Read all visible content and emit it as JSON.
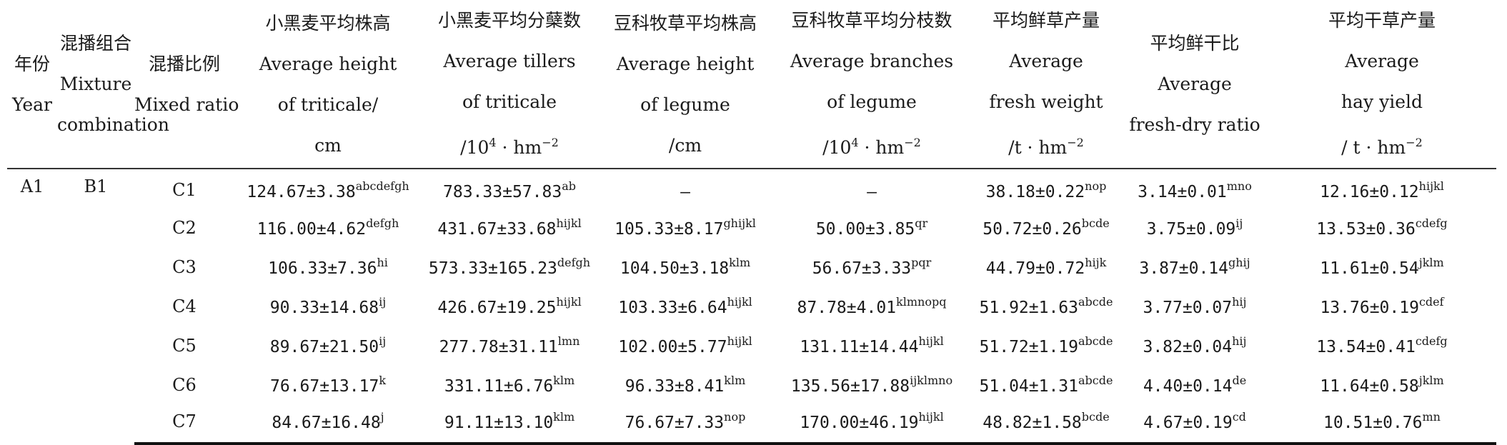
{
  "headers": {
    "year": [
      "年份",
      "Year"
    ],
    "mixture": [
      "混播组合",
      "Mixture",
      "combination"
    ],
    "ratio": [
      "混播比例",
      "Mixed ratio"
    ],
    "triticale_height": [
      "小黑麦平均株高",
      "Average height",
      "of triticale/",
      "cm"
    ],
    "triticale_tillers": [
      "小黑麦平均分蘖数",
      "Average tillers",
      "of triticale",
      "/10",
      "4",
      " · hm",
      "−2"
    ],
    "legume_height": [
      "豆科牧草平均株高",
      "Average height",
      "of legume",
      "/cm"
    ],
    "legume_branches": [
      "豆科牧草平均分枝数",
      "Average branches",
      "of legume",
      "/10",
      "4",
      " · hm",
      "−2"
    ],
    "fresh_weight": [
      "平均鲜草产量",
      "Average",
      "fresh weight",
      "/t · hm",
      "−2"
    ],
    "fresh_dry": [
      "平均鲜干比",
      "Average",
      "fresh-dry ratio"
    ],
    "hay_yield": [
      "平均干草产量",
      "Average",
      "hay yield",
      "/ t · hm",
      "−2"
    ]
  },
  "year": "A1",
  "mixture": "B1",
  "rows": [
    {
      "ratio": "C1",
      "th": "124.67±3.38",
      "th_s": "abcdefgh",
      "tt": "783.33±57.83",
      "tt_s": "ab",
      "lh": "—",
      "lh_s": "",
      "lb": "—",
      "lb_s": "",
      "fw": "38.18±0.22",
      "fw_s": "nop",
      "fd": "3.14±0.01",
      "fd_s": "mno",
      "hy": "12.16±0.12",
      "hy_s": "hijkl"
    },
    {
      "ratio": "C2",
      "th": "116.00±4.62",
      "th_s": "defgh",
      "tt": "431.67±33.68",
      "tt_s": "hijkl",
      "lh": "105.33±8.17",
      "lh_s": "ghijkl",
      "lb": "50.00±3.85",
      "lb_s": "qr",
      "fw": "50.72±0.26",
      "fw_s": "bcde",
      "fd": "3.75±0.09",
      "fd_s": "ij",
      "hy": "13.53±0.36",
      "hy_s": "cdefg"
    },
    {
      "ratio": "C3",
      "th": "106.33±7.36",
      "th_s": "hi",
      "tt": "573.33±165.23",
      "tt_s": "defgh",
      "lh": "104.50±3.18",
      "lh_s": "klm",
      "lb": "56.67±3.33",
      "lb_s": "pqr",
      "fw": "44.79±0.72",
      "fw_s": "hijk",
      "fd": "3.87±0.14",
      "fd_s": "ghij",
      "hy": "11.61±0.54",
      "hy_s": "jklm"
    },
    {
      "ratio": "C4",
      "th": "90.33±14.68",
      "th_s": "ij",
      "tt": "426.67±19.25",
      "tt_s": "hijkl",
      "lh": "103.33±6.64",
      "lh_s": "hijkl",
      "lb": "87.78±4.01",
      "lb_s": "klmnopq",
      "fw": "51.92±1.63",
      "fw_s": "abcde",
      "fd": "3.77±0.07",
      "fd_s": "hij",
      "hy": "13.76±0.19",
      "hy_s": "cdef"
    },
    {
      "ratio": "C5",
      "th": "89.67±21.50",
      "th_s": "ij",
      "tt": "277.78±31.11",
      "tt_s": "lmn",
      "lh": "102.00±5.77",
      "lh_s": "hijkl",
      "lb": "131.11±14.44",
      "lb_s": "hijkl",
      "fw": "51.72±1.19",
      "fw_s": "abcde",
      "fd": "3.82±0.04",
      "fd_s": "hij",
      "hy": "13.54±0.41",
      "hy_s": "cdefg"
    },
    {
      "ratio": "C6",
      "th": "76.67±13.17",
      "th_s": "k",
      "tt": "331.11±6.76",
      "tt_s": "klm",
      "lh": "96.33±8.41",
      "lh_s": "klm",
      "lb": "135.56±17.88",
      "lb_s": "ijklmno",
      "fw": "51.04±1.31",
      "fw_s": "abcde",
      "fd": "4.40±0.14",
      "fd_s": "de",
      "hy": "11.64±0.58",
      "hy_s": "jklm"
    },
    {
      "ratio": "C7",
      "th": "84.67±16.48",
      "th_s": "j",
      "tt": "91.11±13.10",
      "tt_s": "klm",
      "lh": "76.67±7.33",
      "lh_s": "nop",
      "lb": "170.00±46.19",
      "lb_s": "hijkl",
      "fw": "48.82±1.58",
      "fw_s": "bcde",
      "fd": "4.67±0.19",
      "fd_s": "cd",
      "hy": "10.51±0.76",
      "hy_s": "mn"
    }
  ]
}
